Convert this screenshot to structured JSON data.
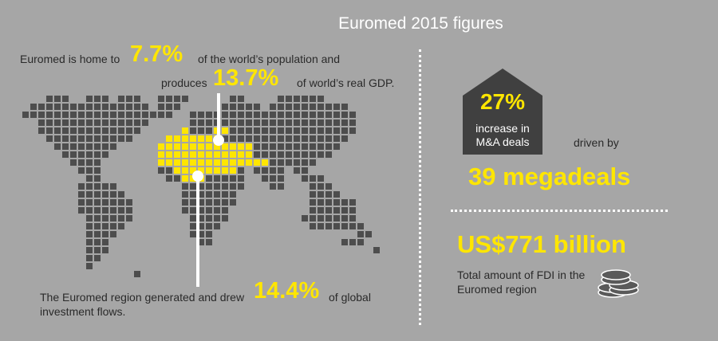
{
  "header": {
    "title": "Euromed 2015 figures"
  },
  "population": {
    "prefix": "Euromed is home to",
    "value": "7.7%",
    "suffix": "of the world’s population and"
  },
  "gdp": {
    "prefix": "produces",
    "value": "13.7%",
    "suffix": "of world’s real GDP."
  },
  "investment": {
    "line1": "The Euromed region generated and drew",
    "value": "14.4%",
    "suffix": "of global",
    "line2": "investment flows."
  },
  "ma_deals": {
    "value": "27%",
    "label_line1": "increase in",
    "label_line2": "M&A deals",
    "driven_by": "driven by",
    "megadeals": "39 megadeals"
  },
  "fdi": {
    "value": "US$771 billion",
    "label_line1": "Total amount of FDI in the",
    "label_line2": "Euromed region"
  },
  "colors": {
    "background": "#a6a6a6",
    "accent_yellow": "#ffe600",
    "dark_gray": "#404040",
    "white": "#ffffff"
  },
  "icons": [
    "world-map-icon",
    "house-icon",
    "coins-icon"
  ]
}
